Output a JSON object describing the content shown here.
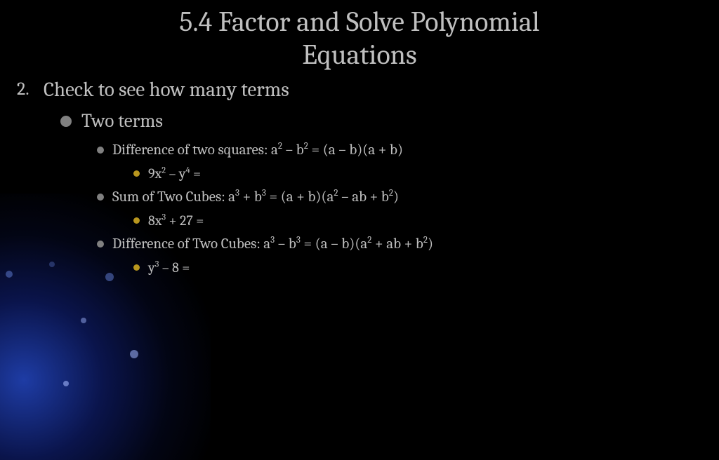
{
  "colors": {
    "background": "#000000",
    "text": "#bfbfbf",
    "bullet_gray": "#808080",
    "bullet_gold": "#b8961e",
    "accent_blue": "#2a4adc"
  },
  "title_line1": "5.4 Factor and Solve Polynomial",
  "title_line2": "Equations",
  "step_number": "2.",
  "step_text": "Check to see how many terms",
  "sub_two_terms": "Two terms",
  "rule1_label": "Difference of two squares: ",
  "rule1_formula_html": "a<sup>2</sup> – b<sup>2</sup> = (a – b)(a + b)",
  "rule1_example_html": "9x<sup>2</sup> – y<sup>4</sup> =",
  "rule2_label": "Sum of Two Cubes: ",
  "rule2_formula_html": "a<sup>3</sup> + b<sup>3</sup> = (a + b)(a<sup>2</sup> – ab + b<sup>2</sup>)",
  "rule2_example_html": "8x<sup>3</sup> + 27 =",
  "rule3_label": "Difference of Two Cubes: ",
  "rule3_formula_html": "a<sup>3</sup> – b<sup>3</sup> = (a – b)(a<sup>2</sup> + ab + b<sup>2</sup>)",
  "rule3_example_html": "y<sup>3</sup> – 8 ="
}
